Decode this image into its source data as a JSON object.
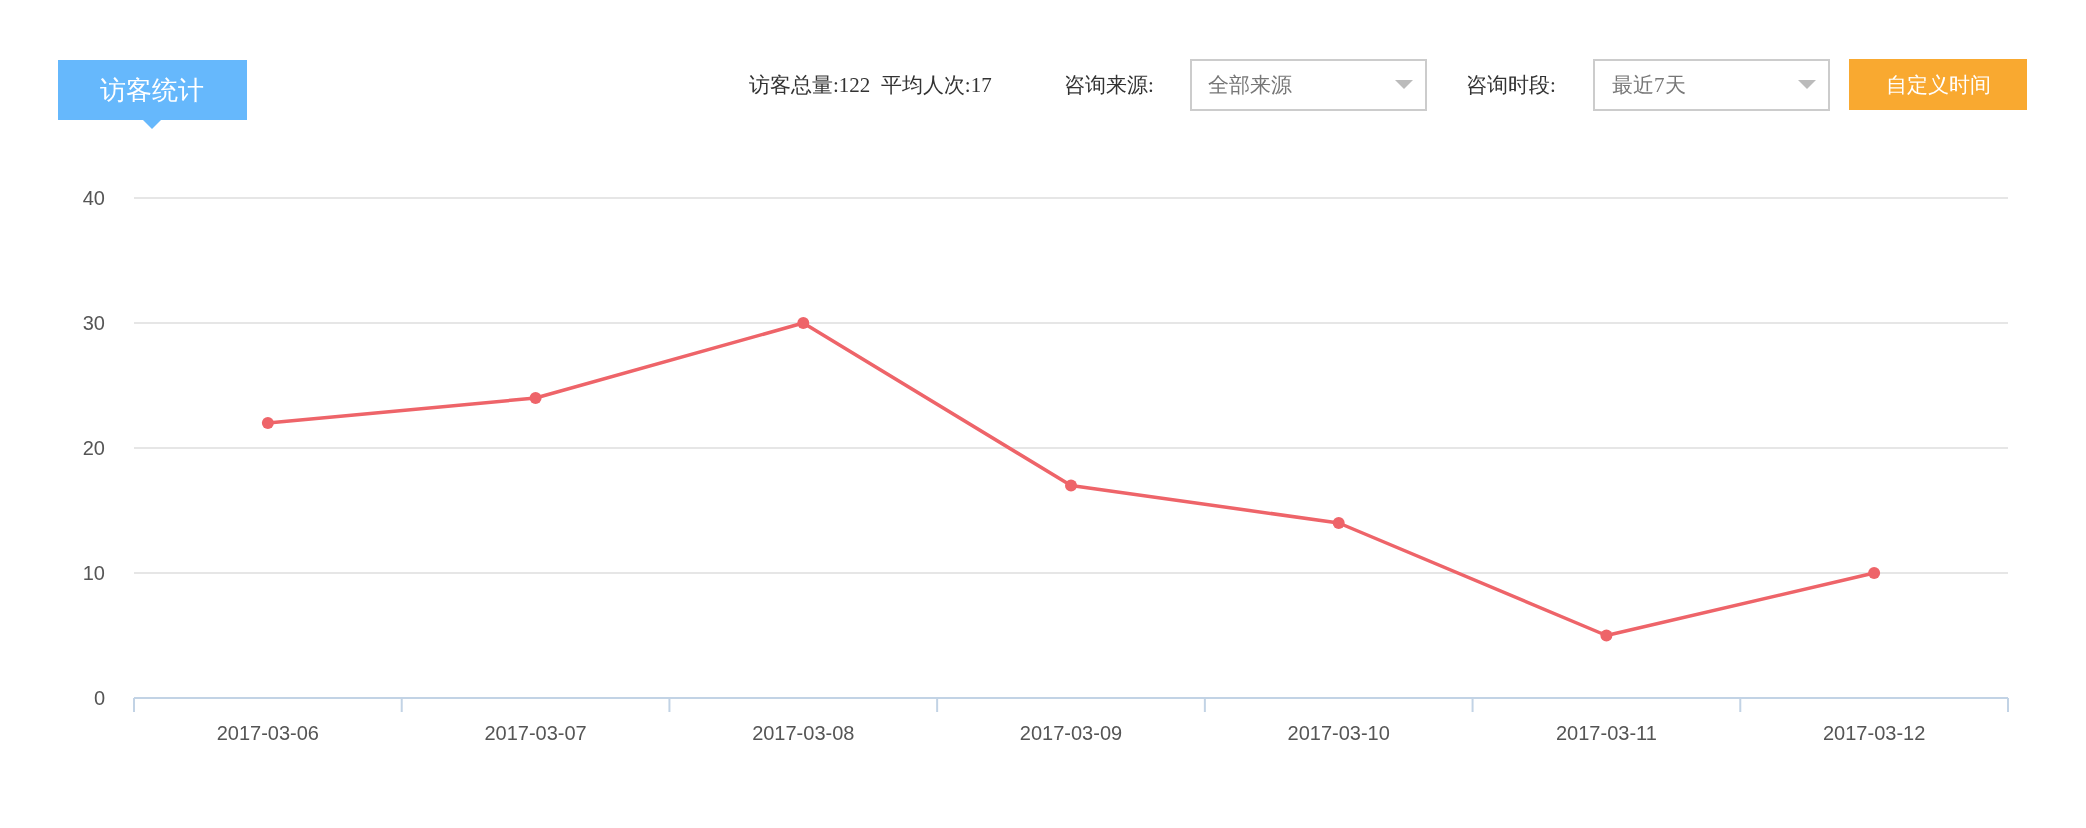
{
  "chart_data": {
    "type": "line",
    "title": "访客统计",
    "annotations": [
      "访客总量:122  平均人次:17",
      "咨询来源:",
      "全部来源",
      "咨询时段:",
      "最近7天",
      "自定义时间"
    ],
    "categories": [
      "2017-03-06",
      "2017-03-07",
      "2017-03-08",
      "2017-03-09",
      "2017-03-10",
      "2017-03-11",
      "2017-03-12"
    ],
    "series": [
      {
        "color": "#ee6469",
        "values": [
          22,
          24,
          30,
          17,
          14,
          5,
          10
        ]
      }
    ],
    "ylim": [
      0,
      40
    ],
    "yticks": [
      0,
      10,
      20,
      30,
      40
    ],
    "grid": "y",
    "marker": "circle",
    "line_style": "solid"
  }
}
